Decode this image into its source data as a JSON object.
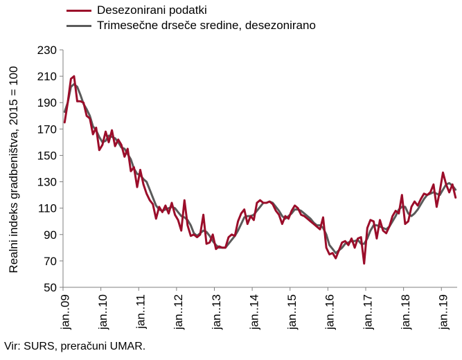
{
  "chart_data": {
    "type": "line",
    "ylabel": "Realni indeks gradbeništva, 2015 = 100",
    "ylim": [
      50,
      230
    ],
    "yticks": [
      50,
      70,
      90,
      110,
      130,
      150,
      170,
      190,
      210,
      230
    ],
    "xticks": [
      "jan..09",
      "jan..10",
      "jan..11",
      "jan..12",
      "jan..13",
      "jan..14",
      "jan..15",
      "jan..16",
      "jan..17",
      "jan..18",
      "jan..19"
    ],
    "grid": false,
    "legend_position": "top-left",
    "series": [
      {
        "name": "Desezonirani podatki",
        "color": "#9b0d2a",
        "values": [
          175,
          190,
          208,
          210,
          191,
          191,
          190,
          180,
          178,
          166,
          171,
          154,
          158,
          168,
          160,
          169,
          157,
          162,
          158,
          149,
          155,
          138,
          141,
          126,
          139,
          128,
          121,
          116,
          113,
          102,
          111,
          107,
          112,
          106,
          114,
          105,
          101,
          93,
          116,
          97,
          89,
          90,
          88,
          90,
          105,
          83,
          84,
          90,
          79,
          81,
          80,
          80,
          88,
          90,
          89,
          100,
          106,
          109,
          98,
          104,
          101,
          114,
          116,
          114,
          114,
          115,
          113,
          108,
          105,
          98,
          104,
          102,
          108,
          112,
          110,
          105,
          104,
          102,
          100,
          98,
          96,
          94,
          103,
          80,
          75,
          76,
          72,
          78,
          84,
          85,
          82,
          87,
          80,
          87,
          88,
          68,
          95,
          101,
          100,
          87,
          101,
          93,
          91,
          96,
          104,
          108,
          106,
          120,
          98,
          100,
          111,
          115,
          112,
          117,
          121,
          120,
          122,
          128,
          111,
          123,
          137,
          128,
          122,
          128,
          118
        ]
      },
      {
        "name": "Trimesečne drseče sredine, desezonirano",
        "color": "#5a5a5a",
        "values": [
          183,
          190,
          202,
          204,
          202,
          196,
          189,
          185,
          180,
          172,
          169,
          164,
          160,
          161,
          165,
          164,
          163,
          160,
          156,
          155,
          151,
          147,
          140,
          136,
          135,
          132,
          130,
          124,
          118,
          112,
          109,
          108,
          109,
          110,
          111,
          110,
          107,
          104,
          103,
          101,
          97,
          91,
          89,
          91,
          93,
          92,
          89,
          85,
          82,
          80,
          80,
          80,
          83,
          86,
          89,
          93,
          98,
          103,
          104,
          104,
          105,
          108,
          111,
          114,
          114,
          115,
          114,
          111,
          108,
          104,
          102,
          104,
          106,
          109,
          109,
          108,
          106,
          104,
          102,
          99,
          97,
          97,
          95,
          90,
          82,
          79,
          76,
          78,
          80,
          83,
          84,
          85,
          85,
          86,
          83,
          83,
          87,
          93,
          97,
          97,
          96,
          95,
          94,
          96,
          100,
          104,
          109,
          111,
          111,
          106,
          104,
          106,
          109,
          113,
          117,
          120,
          121,
          122,
          121,
          120,
          124,
          128,
          129,
          127,
          124
        ]
      }
    ]
  },
  "source": "Vir: SURS, preračuni UMAR."
}
